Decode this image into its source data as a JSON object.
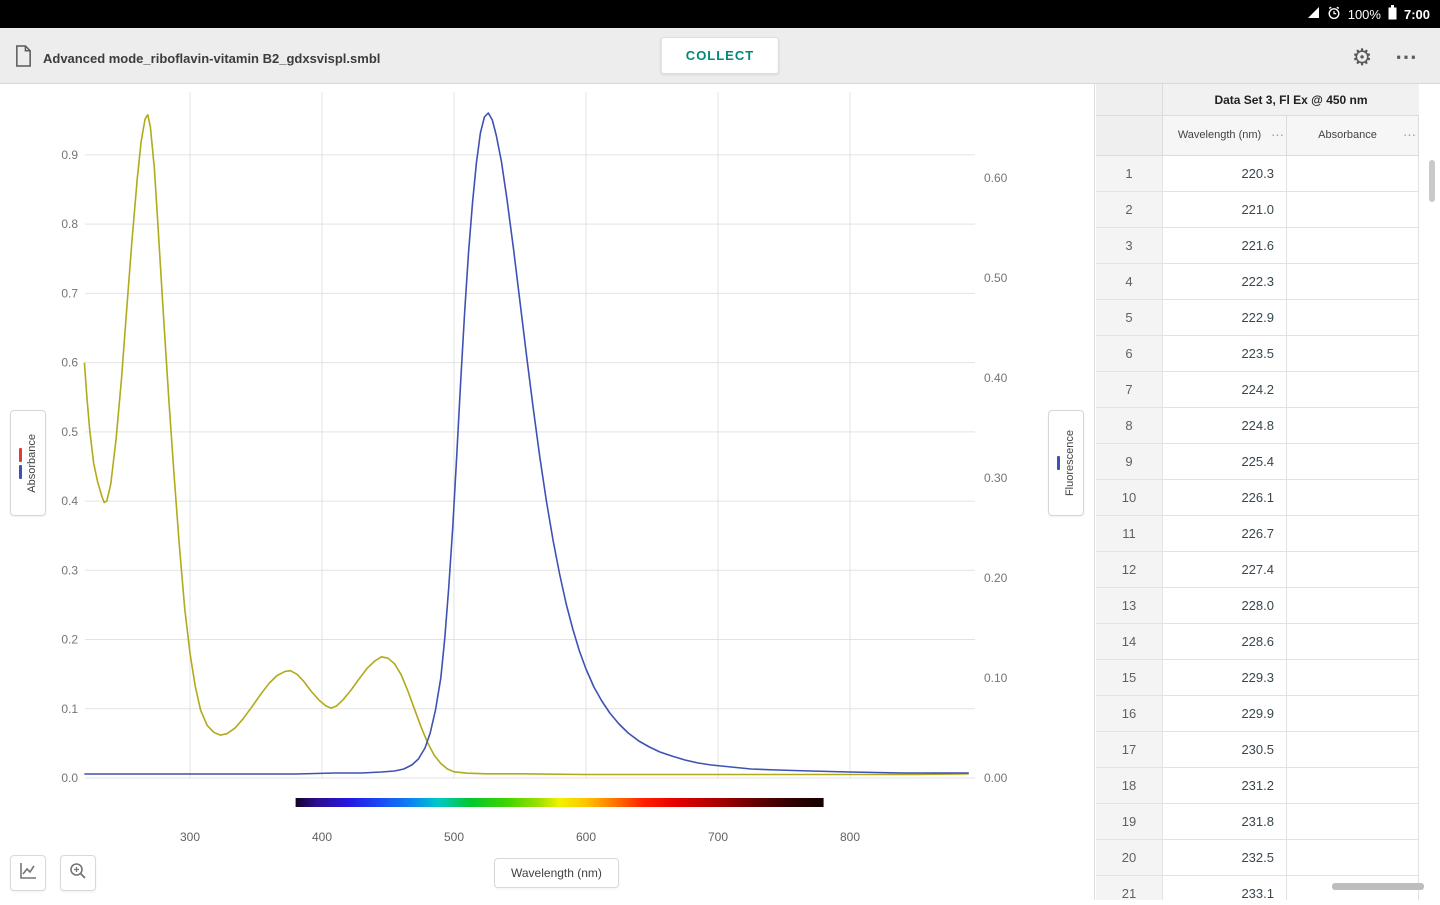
{
  "status_bar": {
    "battery_pct": "100%",
    "time": "7:00"
  },
  "toolbar": {
    "filename": "Advanced mode_riboflavin-vitamin B2_gdxsvispl.smbl",
    "collect": "COLLECT",
    "gear_glyph": "⚙",
    "overflow_glyph": "⋯"
  },
  "chart_data": {
    "type": "line",
    "title": "",
    "xlabel": "Wavelength (nm)",
    "x_ticks": [
      300,
      400,
      500,
      600,
      700,
      800
    ],
    "x_range": [
      220,
      890
    ],
    "grid": true,
    "left_axis": {
      "label": "Absorbance",
      "ticks": [
        0.0,
        0.1,
        0.2,
        0.3,
        0.4,
        0.5,
        0.6,
        0.7,
        0.8,
        0.9
      ],
      "range": [
        0,
        0.96
      ]
    },
    "right_axis": {
      "label": "Fluorescence",
      "ticks": [
        0.0,
        0.1,
        0.2,
        0.3,
        0.4,
        0.5,
        0.6
      ],
      "range": [
        0,
        0.665
      ]
    },
    "series": [
      {
        "name": "Absorbance",
        "axis": "left",
        "color": "#b0ab1a",
        "points": [
          [
            220,
            0.6
          ],
          [
            222,
            0.548
          ],
          [
            224,
            0.503
          ],
          [
            227,
            0.455
          ],
          [
            230,
            0.428
          ],
          [
            233,
            0.408
          ],
          [
            235,
            0.398
          ],
          [
            237,
            0.4
          ],
          [
            240,
            0.425
          ],
          [
            244,
            0.49
          ],
          [
            248,
            0.575
          ],
          [
            252,
            0.675
          ],
          [
            256,
            0.775
          ],
          [
            260,
            0.865
          ],
          [
            263,
            0.92
          ],
          [
            266,
            0.952
          ],
          [
            268,
            0.958
          ],
          [
            270,
            0.94
          ],
          [
            273,
            0.88
          ],
          [
            276,
            0.79
          ],
          [
            280,
            0.665
          ],
          [
            284,
            0.545
          ],
          [
            288,
            0.435
          ],
          [
            292,
            0.335
          ],
          [
            296,
            0.245
          ],
          [
            300,
            0.18
          ],
          [
            304,
            0.132
          ],
          [
            308,
            0.098
          ],
          [
            313,
            0.076
          ],
          [
            318,
            0.066
          ],
          [
            323,
            0.062
          ],
          [
            328,
            0.064
          ],
          [
            334,
            0.072
          ],
          [
            340,
            0.085
          ],
          [
            347,
            0.103
          ],
          [
            354,
            0.122
          ],
          [
            360,
            0.137
          ],
          [
            366,
            0.148
          ],
          [
            372,
            0.154
          ],
          [
            376,
            0.155
          ],
          [
            381,
            0.15
          ],
          [
            386,
            0.14
          ],
          [
            392,
            0.125
          ],
          [
            398,
            0.112
          ],
          [
            403,
            0.104
          ],
          [
            407,
            0.101
          ],
          [
            411,
            0.104
          ],
          [
            416,
            0.113
          ],
          [
            422,
            0.127
          ],
          [
            428,
            0.143
          ],
          [
            434,
            0.158
          ],
          [
            440,
            0.169
          ],
          [
            445,
            0.175
          ],
          [
            450,
            0.173
          ],
          [
            455,
            0.165
          ],
          [
            460,
            0.149
          ],
          [
            465,
            0.126
          ],
          [
            470,
            0.1
          ],
          [
            475,
            0.074
          ],
          [
            480,
            0.051
          ],
          [
            485,
            0.033
          ],
          [
            490,
            0.021
          ],
          [
            495,
            0.013
          ],
          [
            500,
            0.009
          ],
          [
            510,
            0.007
          ],
          [
            525,
            0.006
          ],
          [
            550,
            0.006
          ],
          [
            600,
            0.005
          ],
          [
            650,
            0.005
          ],
          [
            700,
            0.005
          ],
          [
            750,
            0.005
          ],
          [
            800,
            0.005
          ],
          [
            850,
            0.005
          ],
          [
            890,
            0.006
          ]
        ]
      },
      {
        "name": "Fluorescence",
        "axis": "right",
        "color": "#3f51b5",
        "points": [
          [
            220,
            0.004
          ],
          [
            260,
            0.004
          ],
          [
            300,
            0.004
          ],
          [
            340,
            0.004
          ],
          [
            380,
            0.004
          ],
          [
            410,
            0.005
          ],
          [
            430,
            0.005
          ],
          [
            445,
            0.006
          ],
          [
            455,
            0.007
          ],
          [
            462,
            0.009
          ],
          [
            468,
            0.013
          ],
          [
            473,
            0.019
          ],
          [
            478,
            0.03
          ],
          [
            482,
            0.045
          ],
          [
            486,
            0.068
          ],
          [
            490,
            0.1
          ],
          [
            493,
            0.14
          ],
          [
            496,
            0.19
          ],
          [
            499,
            0.25
          ],
          [
            502,
            0.32
          ],
          [
            505,
            0.395
          ],
          [
            508,
            0.465
          ],
          [
            511,
            0.525
          ],
          [
            514,
            0.575
          ],
          [
            517,
            0.615
          ],
          [
            520,
            0.645
          ],
          [
            523,
            0.661
          ],
          [
            526,
            0.665
          ],
          [
            529,
            0.658
          ],
          [
            532,
            0.643
          ],
          [
            536,
            0.616
          ],
          [
            540,
            0.58
          ],
          [
            545,
            0.53
          ],
          [
            550,
            0.476
          ],
          [
            555,
            0.422
          ],
          [
            560,
            0.37
          ],
          [
            565,
            0.321
          ],
          [
            570,
            0.277
          ],
          [
            575,
            0.238
          ],
          [
            580,
            0.204
          ],
          [
            585,
            0.174
          ],
          [
            590,
            0.149
          ],
          [
            595,
            0.127
          ],
          [
            600,
            0.109
          ],
          [
            606,
            0.091
          ],
          [
            612,
            0.077
          ],
          [
            618,
            0.065
          ],
          [
            625,
            0.054
          ],
          [
            632,
            0.045
          ],
          [
            640,
            0.037
          ],
          [
            648,
            0.031
          ],
          [
            656,
            0.026
          ],
          [
            665,
            0.022
          ],
          [
            675,
            0.018
          ],
          [
            685,
            0.015
          ],
          [
            695,
            0.013
          ],
          [
            710,
            0.011
          ],
          [
            725,
            0.009
          ],
          [
            745,
            0.008
          ],
          [
            770,
            0.007
          ],
          [
            800,
            0.006
          ],
          [
            840,
            0.005
          ],
          [
            890,
            0.005
          ]
        ]
      }
    ],
    "legend_left_chip_colors": [
      "#e53935",
      "#3f51b5"
    ],
    "legend_right_chip_colors": [
      "#3f51b5"
    ],
    "spectrum_bar": {
      "range_nm": [
        380,
        780
      ],
      "stops": [
        {
          "o": 0,
          "c": "#12032b"
        },
        {
          "o": 4,
          "c": "#2e0d8e"
        },
        {
          "o": 10,
          "c": "#2417e0"
        },
        {
          "o": 16,
          "c": "#1b49f5"
        },
        {
          "o": 22,
          "c": "#0b86f0"
        },
        {
          "o": 27,
          "c": "#00c8c8"
        },
        {
          "o": 33,
          "c": "#00c830"
        },
        {
          "o": 40,
          "c": "#3fd400"
        },
        {
          "o": 46,
          "c": "#9ae000"
        },
        {
          "o": 50,
          "c": "#f2f200"
        },
        {
          "o": 55,
          "c": "#ffc400"
        },
        {
          "o": 60,
          "c": "#ff7a00"
        },
        {
          "o": 66,
          "c": "#ff1e00"
        },
        {
          "o": 72,
          "c": "#e60000"
        },
        {
          "o": 80,
          "c": "#a80000"
        },
        {
          "o": 88,
          "c": "#5c0000"
        },
        {
          "o": 95,
          "c": "#2b0000"
        },
        {
          "o": 100,
          "c": "#140000"
        }
      ]
    }
  },
  "table": {
    "title": "Data Set 3, Fl Ex @ 450 nm",
    "columns": [
      {
        "label": "Wavelength (nm)",
        "menu": "⋯"
      },
      {
        "label": "Absorbance",
        "menu": "⋯"
      }
    ],
    "rows": [
      {
        "n": "1",
        "wavelength": "220.3",
        "absorbance": ""
      },
      {
        "n": "2",
        "wavelength": "221.0",
        "absorbance": ""
      },
      {
        "n": "3",
        "wavelength": "221.6",
        "absorbance": ""
      },
      {
        "n": "4",
        "wavelength": "222.3",
        "absorbance": ""
      },
      {
        "n": "5",
        "wavelength": "222.9",
        "absorbance": ""
      },
      {
        "n": "6",
        "wavelength": "223.5",
        "absorbance": ""
      },
      {
        "n": "7",
        "wavelength": "224.2",
        "absorbance": ""
      },
      {
        "n": "8",
        "wavelength": "224.8",
        "absorbance": ""
      },
      {
        "n": "9",
        "wavelength": "225.4",
        "absorbance": ""
      },
      {
        "n": "10",
        "wavelength": "226.1",
        "absorbance": ""
      },
      {
        "n": "11",
        "wavelength": "226.7",
        "absorbance": ""
      },
      {
        "n": "12",
        "wavelength": "227.4",
        "absorbance": ""
      },
      {
        "n": "13",
        "wavelength": "228.0",
        "absorbance": ""
      },
      {
        "n": "14",
        "wavelength": "228.6",
        "absorbance": ""
      },
      {
        "n": "15",
        "wavelength": "229.3",
        "absorbance": ""
      },
      {
        "n": "16",
        "wavelength": "229.9",
        "absorbance": ""
      },
      {
        "n": "17",
        "wavelength": "230.5",
        "absorbance": ""
      },
      {
        "n": "18",
        "wavelength": "231.2",
        "absorbance": ""
      },
      {
        "n": "19",
        "wavelength": "231.8",
        "absorbance": ""
      },
      {
        "n": "20",
        "wavelength": "232.5",
        "absorbance": ""
      },
      {
        "n": "21",
        "wavelength": "233.1",
        "absorbance": ""
      }
    ]
  }
}
